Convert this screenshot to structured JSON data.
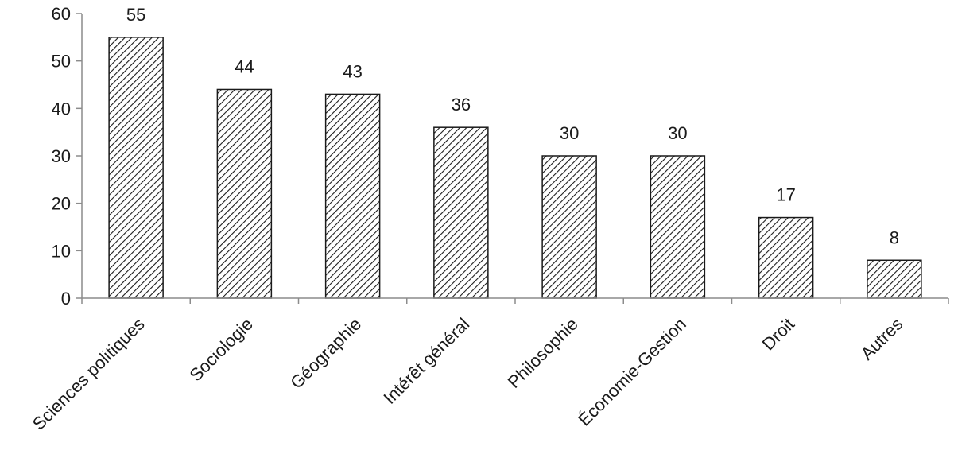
{
  "chart_data": {
    "type": "bar",
    "title": "",
    "xlabel": "",
    "ylabel": "",
    "categories": [
      "Sciences politiques",
      "Sociologie",
      "Géographie",
      "Intérêt général",
      "Philosophie",
      "Économie-Gestion",
      "Droit",
      "Autres"
    ],
    "values": [
      55,
      44,
      43,
      36,
      30,
      30,
      17,
      8
    ],
    "data_labels": [
      "55",
      "44",
      "43",
      "36",
      "30",
      "30",
      "17",
      "8"
    ],
    "ylim": [
      0,
      60
    ],
    "yticks": [
      0,
      10,
      20,
      30,
      40,
      50,
      60
    ],
    "ytick_labels": [
      "0",
      "10",
      "20",
      "30",
      "40",
      "50",
      "60"
    ],
    "grid": false,
    "legend": "none",
    "bar_fill": "diagonal-hatch",
    "colors": {
      "bar_stroke": "#1a1a1a",
      "hatch": "#1a1a1a",
      "background": "#ffffff",
      "axis": "#8c8c8c"
    }
  }
}
